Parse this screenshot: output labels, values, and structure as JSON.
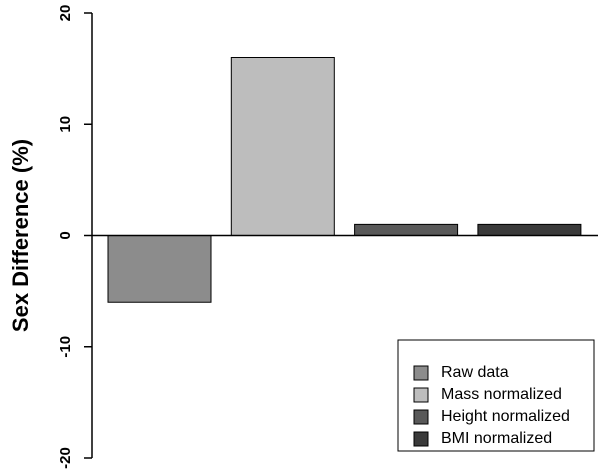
{
  "chart_data": {
    "type": "bar",
    "categories": [
      "Raw data",
      "Mass normalized",
      "Height normalized",
      "BMI normalized"
    ],
    "values": [
      -6,
      16,
      1,
      1
    ],
    "colors": [
      "#8c8c8c",
      "#bdbdbd",
      "#595959",
      "#3a3a3a"
    ],
    "ylabel": "Sex Difference (%)",
    "ylim": [
      -20,
      20
    ],
    "yticks": [
      -20,
      -10,
      0,
      10,
      20
    ],
    "ytick_labels": [
      "-20",
      "-10",
      "0",
      "10",
      "20"
    ],
    "legend": {
      "position": "bottom-right",
      "entries": [
        "Raw data",
        "Mass normalized",
        "Height normalized",
        "BMI normalized"
      ]
    }
  }
}
